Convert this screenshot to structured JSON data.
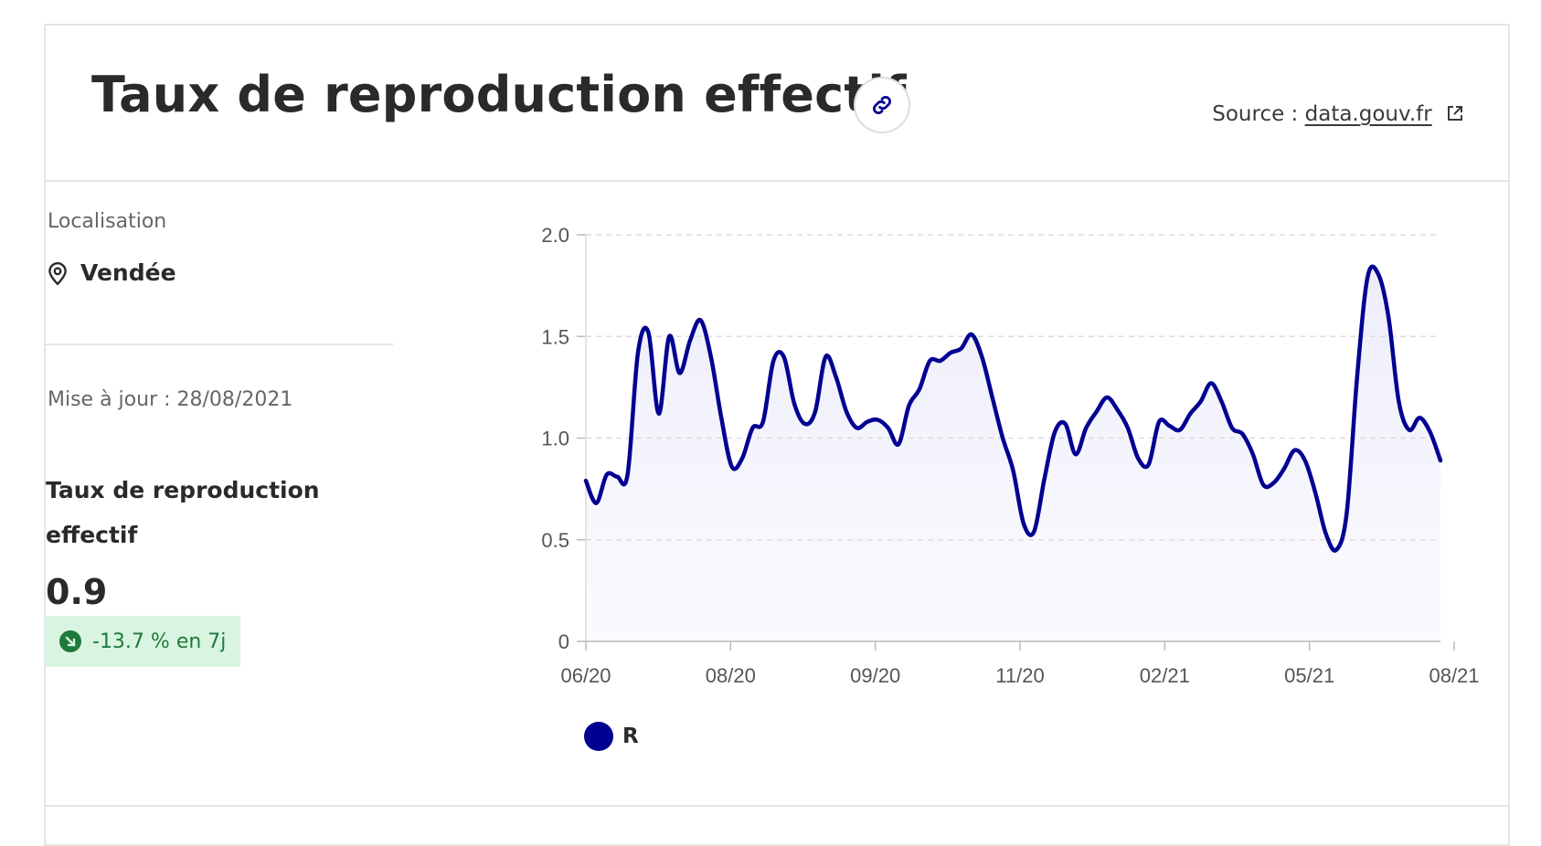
{
  "header": {
    "title": "Taux de reproduction effectif",
    "source_prefix": "Source : ",
    "source_link": "data.gouv.fr",
    "link_icon": "link-icon",
    "external_icon": "external-link-icon"
  },
  "sidebar": {
    "location_label": "Localisation",
    "location_value": "Vendée",
    "location_icon": "map-pin-icon",
    "updated_text": "Mise à jour : 28/08/2021",
    "indicator_title": "Taux de reproduction effectif",
    "indicator_value": "0.9",
    "trend_text": "-13.7 % en 7j",
    "trend_icon": "arrow-down-right-icon"
  },
  "colors": {
    "accent": "#000091",
    "fill": "#ededfb",
    "grid": "#dddddd",
    "trend_bg": "#d9f5e1",
    "trend_fg": "#1e7a3a"
  },
  "chart_data": {
    "type": "area",
    "title": "",
    "xlabel": "",
    "ylabel": "",
    "ylim": [
      0,
      2.0
    ],
    "yticks": [
      "0",
      "0.5",
      "1.0",
      "1.5",
      "2.0"
    ],
    "xticks": [
      "06/20",
      "08/20",
      "09/20",
      "11/20",
      "02/21",
      "05/21",
      "08/21"
    ],
    "grid": true,
    "legend_position": "bottom-left",
    "series": [
      {
        "name": "R",
        "values": [
          0.79,
          0.68,
          0.82,
          0.81,
          0.82,
          1.42,
          1.52,
          1.12,
          1.5,
          1.32,
          1.48,
          1.58,
          1.4,
          1.1,
          0.86,
          0.9,
          1.05,
          1.08,
          1.38,
          1.4,
          1.17,
          1.07,
          1.13,
          1.4,
          1.3,
          1.13,
          1.05,
          1.08,
          1.09,
          1.05,
          0.97,
          1.16,
          1.24,
          1.38,
          1.38,
          1.42,
          1.44,
          1.51,
          1.4,
          1.2,
          1.0,
          0.84,
          0.58,
          0.54,
          0.8,
          1.03,
          1.07,
          0.92,
          1.05,
          1.13,
          1.2,
          1.14,
          1.05,
          0.9,
          0.87,
          1.08,
          1.06,
          1.04,
          1.12,
          1.18,
          1.27,
          1.18,
          1.05,
          1.02,
          0.92,
          0.77,
          0.78,
          0.85,
          0.94,
          0.89,
          0.73,
          0.53,
          0.45,
          0.63,
          1.3,
          1.79,
          1.81,
          1.6,
          1.18,
          1.04,
          1.1,
          1.03,
          0.89
        ]
      }
    ]
  }
}
